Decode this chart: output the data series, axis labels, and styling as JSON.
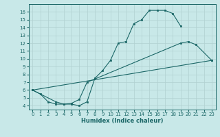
{
  "xlabel": "Humidex (Indice chaleur)",
  "xlim": [
    -0.5,
    23.5
  ],
  "ylim": [
    3.5,
    17.0
  ],
  "xticks": [
    0,
    1,
    2,
    3,
    4,
    5,
    6,
    7,
    8,
    9,
    10,
    11,
    12,
    13,
    14,
    15,
    16,
    17,
    18,
    19,
    20,
    21,
    22,
    23
  ],
  "yticks": [
    4,
    5,
    6,
    7,
    8,
    9,
    10,
    11,
    12,
    13,
    14,
    15,
    16
  ],
  "background_color": "#c8e8e8",
  "line_color": "#1a6666",
  "grid_color": "#b0d0d0",
  "line1_x": [
    0,
    1,
    2,
    3,
    4,
    5,
    6,
    7,
    8,
    9,
    10,
    11,
    12,
    13,
    14,
    15,
    16,
    17,
    18,
    19
  ],
  "line1_y": [
    6.0,
    5.5,
    4.5,
    4.2,
    4.2,
    4.2,
    4.0,
    4.5,
    7.5,
    8.5,
    9.8,
    12.0,
    12.2,
    14.5,
    15.0,
    16.2,
    16.2,
    16.2,
    15.8,
    14.2
  ],
  "line2_x": [
    0,
    3,
    4,
    5,
    6,
    7,
    19,
    20,
    21,
    23
  ],
  "line2_y": [
    6.0,
    4.5,
    4.2,
    4.3,
    4.8,
    7.0,
    12.0,
    12.2,
    11.8,
    9.8
  ],
  "line3_x": [
    0,
    23
  ],
  "line3_y": [
    6.0,
    9.8
  ],
  "marker_size": 2.0,
  "line_width": 0.8
}
